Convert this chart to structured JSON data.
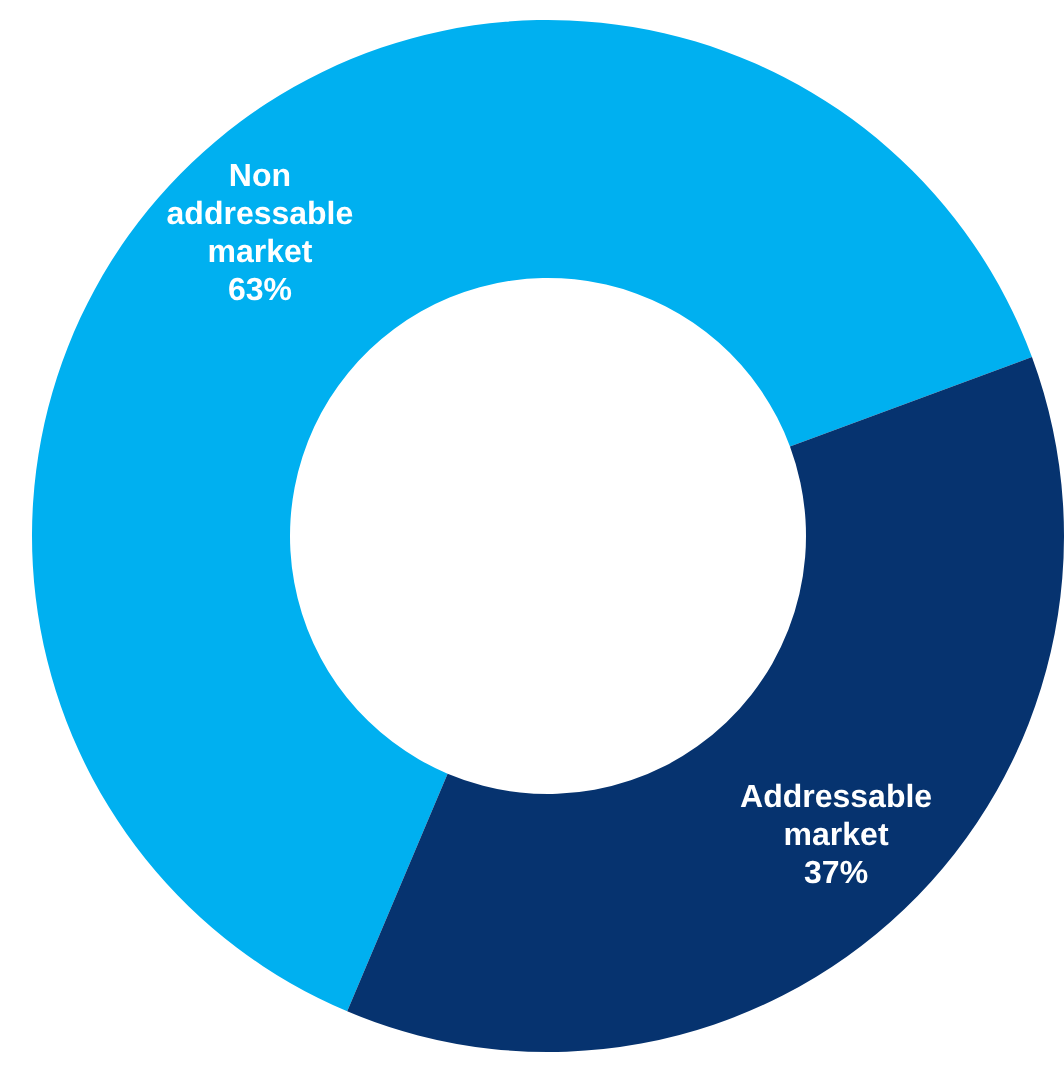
{
  "chart_data": {
    "type": "donut",
    "categories": [
      "Non addressable market",
      "Addressable market"
    ],
    "values": [
      63,
      37
    ],
    "colors": [
      "#00b0f0",
      "#06336f"
    ],
    "value_labels": [
      "63%",
      "37%"
    ]
  }
}
